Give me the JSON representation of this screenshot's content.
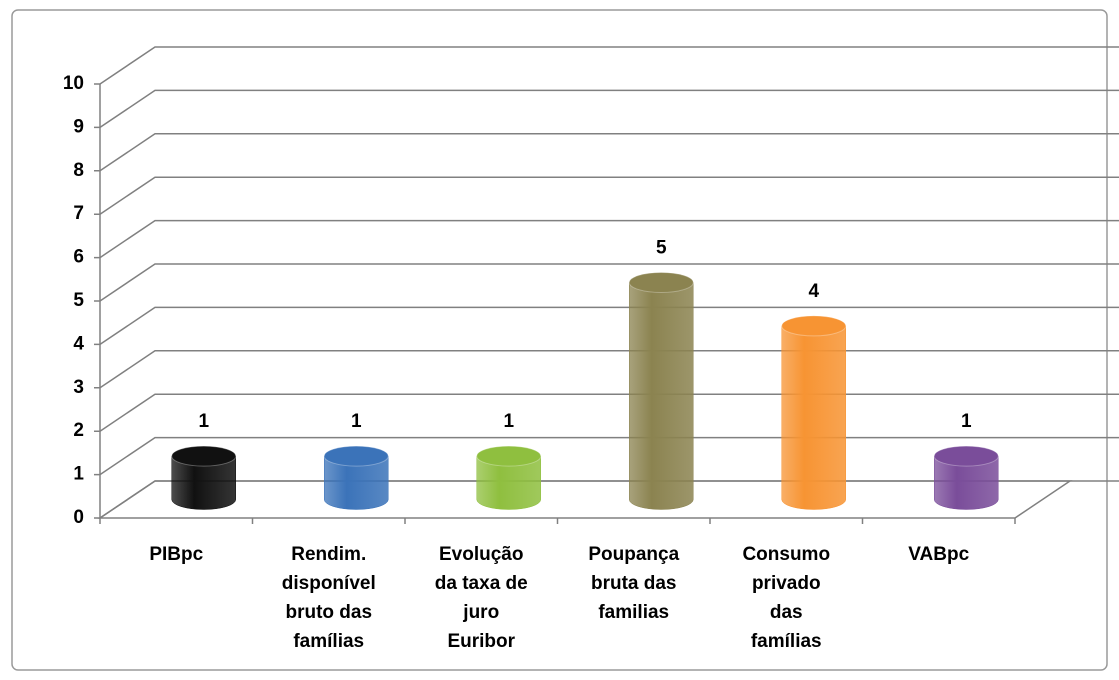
{
  "chart_data": {
    "type": "cylinder",
    "categories": [
      [
        "PIBpc"
      ],
      [
        "Rendim.",
        "disponível",
        "bruto das",
        "famílias"
      ],
      [
        "Evolução",
        "da taxa de",
        "juro",
        "Euribor"
      ],
      [
        "Poupança",
        "bruta das",
        "familias"
      ],
      [
        "Consumo",
        "privado",
        "das",
        "famílias"
      ],
      [
        "VABpc"
      ]
    ],
    "values": [
      1,
      1,
      1,
      5,
      4,
      1
    ],
    "colors": [
      "#111111",
      "#3b73b9",
      "#8fbf3f",
      "#8b8350",
      "#f79433",
      "#7a4d9a"
    ],
    "ylim": [
      0,
      10
    ],
    "yticks": [
      0,
      1,
      2,
      3,
      4,
      5,
      6,
      7,
      8,
      9,
      10
    ],
    "grid": true
  }
}
